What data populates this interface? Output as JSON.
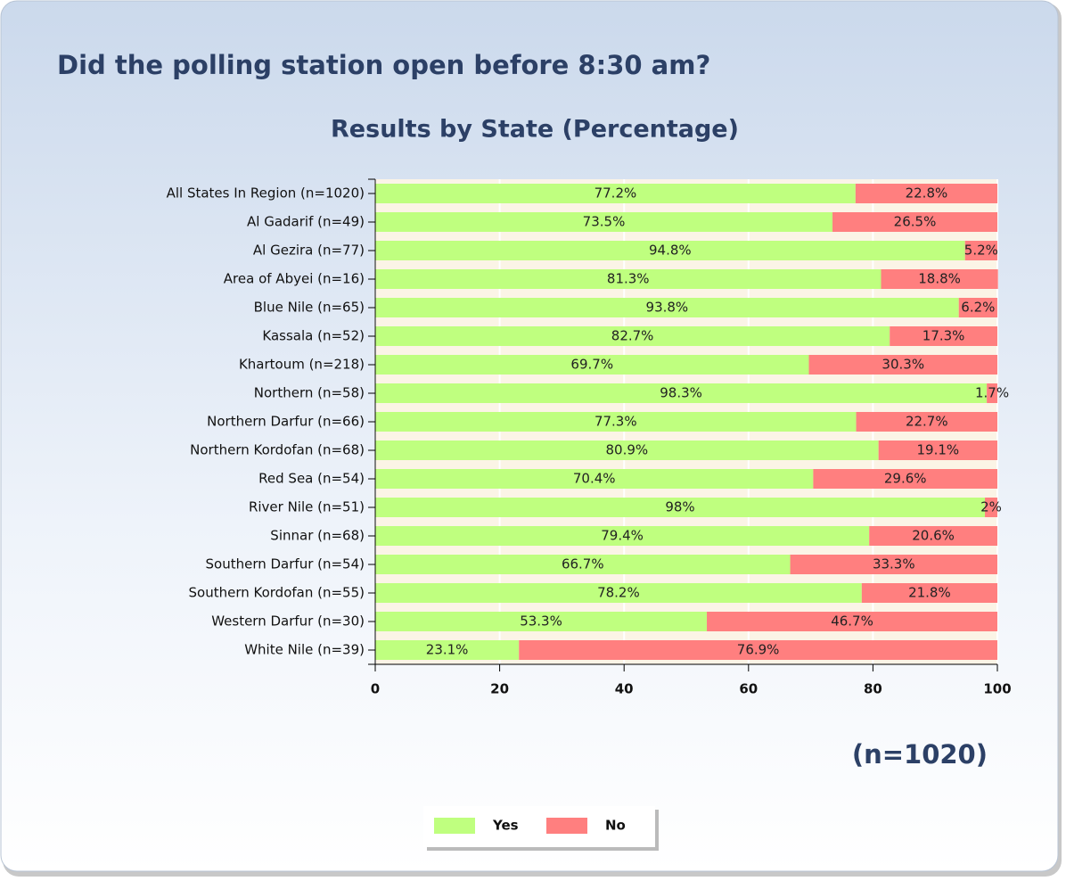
{
  "chart_data": {
    "type": "bar",
    "orientation": "horizontal",
    "stacked": true,
    "title": "Did the polling station open before 8:30 am?",
    "subtitle": "Results by State (Percentage)",
    "annotation": "(n=1020)",
    "categories": [
      "All States In Region (n=1020)",
      "Al Gadarif (n=49)",
      "Al Gezira (n=77)",
      "Area of Abyei (n=16)",
      "Blue Nile (n=65)",
      "Kassala (n=52)",
      "Khartoum (n=218)",
      "Northern (n=58)",
      "Northern Darfur (n=66)",
      "Northern Kordofan (n=68)",
      "Red Sea (n=54)",
      "River Nile (n=51)",
      "Sinnar (n=68)",
      "Southern Darfur (n=54)",
      "Southern Kordofan (n=55)",
      "Western Darfur (n=30)",
      "White Nile (n=39)"
    ],
    "series": [
      {
        "name": "Yes",
        "color": "#bfff7f",
        "values": [
          77.2,
          73.5,
          94.8,
          81.3,
          93.8,
          82.7,
          69.7,
          98.3,
          77.3,
          80.9,
          70.4,
          98,
          79.4,
          66.7,
          78.2,
          53.3,
          23.1
        ],
        "value_labels": [
          "77.2%",
          "73.5%",
          "94.8%",
          "81.3%",
          "93.8%",
          "82.7%",
          "69.7%",
          "98.3%",
          "77.3%",
          "80.9%",
          "70.4%",
          "98%",
          "79.4%",
          "66.7%",
          "78.2%",
          "53.3%",
          "23.1%"
        ]
      },
      {
        "name": "No",
        "color": "#ff7f7f",
        "values": [
          22.8,
          26.5,
          5.2,
          18.8,
          6.2,
          17.3,
          30.3,
          1.7,
          22.7,
          19.1,
          29.6,
          2,
          20.6,
          33.3,
          21.8,
          46.7,
          76.9
        ],
        "value_labels": [
          "22.8%",
          "26.5%",
          "5.2%",
          "18.8%",
          "6.2%",
          "17.3%",
          "30.3%",
          "1.7%",
          "22.7%",
          "19.1%",
          "29.6%",
          "2%",
          "20.6%",
          "33.3%",
          "21.8%",
          "46.7%",
          "76.9%"
        ]
      }
    ],
    "xlim": [
      0,
      100
    ],
    "xticks": [
      0,
      20,
      40,
      60,
      80,
      100
    ],
    "grid": true,
    "legend": "bottom"
  }
}
